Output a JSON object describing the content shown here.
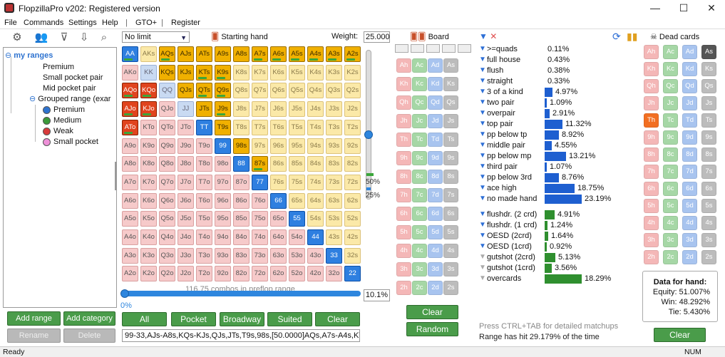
{
  "window": {
    "title": "FlopzillaPro v202: Registered version",
    "minimize": "—",
    "maximize": "☐",
    "close": "✕"
  },
  "menu": [
    "File",
    "Commands",
    "Settings",
    "Help",
    "|",
    "GTO+",
    "|",
    "Register"
  ],
  "toolbar_icons": [
    "gear-icon",
    "users-icon",
    "filter-icon",
    "expand-icon",
    "search-icon"
  ],
  "tree": {
    "root": "my ranges",
    "items": [
      "Premium",
      "Small pocket pair",
      "Mid pocket pair"
    ],
    "group": "Grouped range (exar",
    "group_items": [
      {
        "label": "Premium",
        "color": "#2e73d0"
      },
      {
        "label": "Medium",
        "color": "#3a9a3a"
      },
      {
        "label": "Weak",
        "color": "#d83a3a"
      },
      {
        "label": "Small pocket",
        "color": "#ee90d8"
      }
    ]
  },
  "left_buttons": {
    "add_range": "Add range",
    "add_category": "Add category",
    "rename": "Rename",
    "delete": "Delete"
  },
  "range_panel": {
    "limit": "No limit",
    "starting_hand": "Starting hand",
    "weight_label": "Weight:",
    "weight_value": "25.000",
    "slider_marks": [
      "50%",
      "25%"
    ],
    "combos_text": "116.75 combos in preflop range",
    "slider_pct": "0%",
    "pct_input": "10.1%",
    "buttons": [
      "All",
      "Pocket",
      "Broadway",
      "Suited",
      "Clear"
    ],
    "range_text": "99-33,AJs-A8s,KQs-KJs,QJs,JTs,T9s,98s,[50.0000]AQs,A7s-A4s,KTs-"
  },
  "hand_grid": {
    "ranks": [
      "A",
      "K",
      "Q",
      "J",
      "T",
      "9",
      "8",
      "7",
      "6",
      "5",
      "4",
      "3",
      "2"
    ],
    "selected_suited": [
      "AQs",
      "AJs",
      "ATs",
      "A9s",
      "A8s",
      "A7s",
      "A6s",
      "A5s",
      "A4s",
      "A3s",
      "A2s",
      "KQs",
      "KJs",
      "KTs",
      "K9s",
      "QJs",
      "QTs",
      "Q9s",
      "JTs",
      "J9s",
      "T9s",
      "98s",
      "87s"
    ],
    "half_weight": [
      "AQs",
      "A7s",
      "A6s",
      "A5s",
      "A4s",
      "A3s",
      "A2s",
      "KTs",
      "K9s",
      "QTs",
      "Q9s",
      "J9s",
      "87s"
    ],
    "selected_pairs": [
      "AA",
      "TT",
      "99",
      "88",
      "77",
      "66",
      "55",
      "44",
      "33",
      "22"
    ],
    "selected_offsuit": [
      "AQo",
      "KQo",
      "AJo",
      "KJo",
      "ATo"
    ],
    "weighted_pairs": [
      "AA"
    ]
  },
  "board": {
    "header": "Board",
    "ranks": [
      "A",
      "K",
      "Q",
      "J",
      "T",
      "9",
      "8",
      "7",
      "6",
      "5",
      "4",
      "3",
      "2"
    ],
    "suits": [
      "h",
      "c",
      "d",
      "s"
    ],
    "clear": "Clear",
    "random": "Random"
  },
  "stats": [
    {
      "label": ">=quads",
      "value": "0.11%",
      "bar": 0.0
    },
    {
      "label": "full house",
      "value": "0.43%",
      "bar": 0.0
    },
    {
      "label": "flush",
      "value": "0.38%",
      "bar": 0.0
    },
    {
      "label": "straight",
      "value": "0.33%",
      "bar": 0.0
    },
    {
      "label": "3 of a kind",
      "value": "4.97%",
      "bar": 0.21
    },
    {
      "label": "two pair",
      "value": "1.09%",
      "bar": 0.05
    },
    {
      "label": "overpair",
      "value": "2.91%",
      "bar": 0.13
    },
    {
      "label": "top pair",
      "value": "11.32%",
      "bar": 0.49
    },
    {
      "label": "pp below tp",
      "value": "8.92%",
      "bar": 0.39
    },
    {
      "label": "middle pair",
      "value": "4.55%",
      "bar": 0.2
    },
    {
      "label": "pp below mp",
      "value": "13.21%",
      "bar": 0.57
    },
    {
      "label": "third pair",
      "value": "1.07%",
      "bar": 0.05
    },
    {
      "label": "pp below 3rd",
      "value": "8.76%",
      "bar": 0.38
    },
    {
      "label": "ace high",
      "value": "18.75%",
      "bar": 0.81
    },
    {
      "label": "no made hand",
      "value": "23.19%",
      "bar": 1.0
    }
  ],
  "draws": [
    {
      "label": "flushdr. (2 crd)",
      "value": "4.91%",
      "bar": 0.27
    },
    {
      "label": "flushdr. (1 crd)",
      "value": "1.24%",
      "bar": 0.07
    },
    {
      "label": "OESD (2crd)",
      "value": "1.64%",
      "bar": 0.09
    },
    {
      "label": "OESD (1crd)",
      "value": "0.92%",
      "bar": 0.05
    },
    {
      "label": "gutshot (2crd)",
      "value": "5.13%",
      "bar": 0.28
    },
    {
      "label": "gutshot (1crd)",
      "value": "3.56%",
      "bar": 0.19
    },
    {
      "label": "overcards",
      "value": "18.29%",
      "bar": 1.0
    }
  ],
  "hint": "Press CTRL+TAB for detailed matchups",
  "hit": "Range has hit 29.179% of the time",
  "dead": {
    "header": "Dead cards",
    "dead_cards": [
      "As",
      "Th"
    ],
    "clear": "Clear"
  },
  "data_for_hand": {
    "title": "Data for hand:",
    "equity": "Equity: 51.007%",
    "win": "Win: 48.292%",
    "tie": "Tie: 5.430%"
  },
  "status": {
    "left": "Ready",
    "right": "NUM"
  }
}
